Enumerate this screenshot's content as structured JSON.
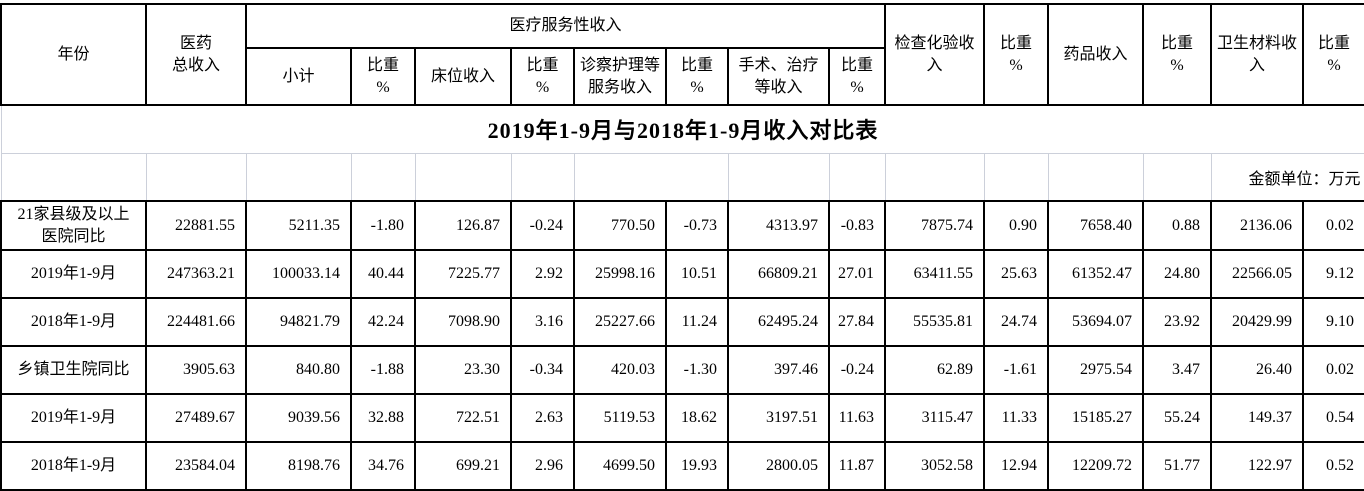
{
  "title": "2019年1-9月与2018年1-9月收入对比表",
  "unit_note": "金额单位：万元",
  "colors": {
    "table_grid": "#000000",
    "outer_grid": "#ccd0da",
    "background": "#ffffff"
  },
  "table": {
    "headers": {
      "year": "年份",
      "total_income": "医药\n总收入",
      "medical_service": "医疗服务性收入",
      "subtotal": "小计",
      "ratio": "比重\n%",
      "bed": "床位收入",
      "exam_nursing": "诊察护理等\n服务收入",
      "surgery": "手术、治疗\n等收入",
      "inspection": "检查化验收\n入",
      "drug": "药品收入",
      "material": "卫生材料收\n入"
    },
    "rows": [
      {
        "label": "21家县级及以上\n医院同比",
        "values": [
          "22881.55",
          "5211.35",
          "-1.80",
          "126.87",
          "-0.24",
          "770.50",
          "-0.73",
          "4313.97",
          "-0.83",
          "7875.74",
          "0.90",
          "7658.40",
          "0.88",
          "2136.06",
          "0.02"
        ]
      },
      {
        "label": "2019年1-9月",
        "values": [
          "247363.21",
          "100033.14",
          "40.44",
          "7225.77",
          "2.92",
          "25998.16",
          "10.51",
          "66809.21",
          "27.01",
          "63411.55",
          "25.63",
          "61352.47",
          "24.80",
          "22566.05",
          "9.12"
        ]
      },
      {
        "label": "2018年1-9月",
        "values": [
          "224481.66",
          "94821.79",
          "42.24",
          "7098.90",
          "3.16",
          "25227.66",
          "11.24",
          "62495.24",
          "27.84",
          "55535.81",
          "24.74",
          "53694.07",
          "23.92",
          "20429.99",
          "9.10"
        ]
      },
      {
        "label": "乡镇卫生院同比",
        "values": [
          "3905.63",
          "840.80",
          "-1.88",
          "23.30",
          "-0.34",
          "420.03",
          "-1.30",
          "397.46",
          "-0.24",
          "62.89",
          "-1.61",
          "2975.54",
          "3.47",
          "26.40",
          "0.02"
        ]
      },
      {
        "label": "2019年1-9月",
        "values": [
          "27489.67",
          "9039.56",
          "32.88",
          "722.51",
          "2.63",
          "5119.53",
          "18.62",
          "3197.51",
          "11.63",
          "3115.47",
          "11.33",
          "15185.27",
          "55.24",
          "149.37",
          "0.54"
        ]
      },
      {
        "label": "2018年1-9月",
        "values": [
          "23584.04",
          "8198.76",
          "34.76",
          "699.21",
          "2.96",
          "4699.50",
          "19.93",
          "2800.05",
          "11.87",
          "3052.58",
          "12.94",
          "12209.72",
          "51.77",
          "122.97",
          "0.52"
        ]
      }
    ]
  }
}
